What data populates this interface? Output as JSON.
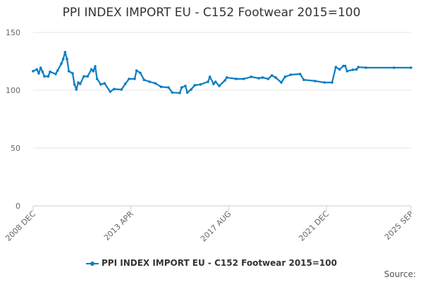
{
  "chart_data": {
    "type": "line",
    "title": "PPI INDEX IMPORT EU - C152 Footwear 2015=100",
    "xlabel": "",
    "ylabel": "",
    "x_unit": "months since 2008 DEC",
    "xlim": [
      0,
      201
    ],
    "ylim": [
      0,
      150
    ],
    "y_ticks": [
      0,
      50,
      100,
      150
    ],
    "x_ticks": [
      {
        "x": 0,
        "label": "2008 DEC"
      },
      {
        "x": 52,
        "label": "2013 APR"
      },
      {
        "x": 104,
        "label": "2017 AUG"
      },
      {
        "x": 156,
        "label": "2021 DEC"
      },
      {
        "x": 201,
        "label": "2025 SEP"
      }
    ],
    "grid": true,
    "legend_position": "bottom",
    "color": "#0a7dc2",
    "series": [
      {
        "name": "PPI INDEX IMPORT EU - C152 Footwear 2015=100",
        "x": [
          0,
          2,
          3,
          4,
          5,
          6,
          8,
          9,
          12,
          13,
          15,
          16,
          17,
          18,
          19,
          21,
          22,
          23,
          24,
          25,
          27,
          29,
          31,
          32,
          33,
          34,
          36,
          38,
          41,
          43,
          47,
          49,
          51,
          54,
          55,
          57,
          59,
          62,
          65,
          68,
          72,
          74,
          78,
          79,
          81,
          82,
          84,
          86,
          89,
          93,
          94,
          96,
          97,
          99,
          102,
          103,
          108,
          112,
          116,
          120,
          122,
          125,
          127,
          129,
          132,
          134,
          137,
          142,
          144,
          150,
          155,
          159,
          161,
          163,
          165,
          166,
          167,
          170,
          172,
          173,
          177,
          192,
          201
        ],
        "values": [
          116.5,
          118,
          114.6,
          119.5,
          116,
          112,
          112,
          116,
          114,
          117,
          123,
          127,
          133,
          127,
          116.5,
          114.6,
          105,
          100.6,
          106.7,
          105.5,
          112,
          112,
          118,
          116.5,
          120.7,
          109.8,
          105,
          106,
          98.8,
          101,
          100.6,
          105.5,
          109.8,
          109.8,
          117,
          115,
          109,
          107.3,
          106,
          103,
          102.4,
          98,
          97.6,
          102.4,
          103.7,
          98,
          100.6,
          104.3,
          105,
          107.3,
          111.6,
          105.5,
          107.3,
          103.7,
          108.5,
          111,
          109.8,
          109.8,
          111.6,
          110.4,
          111,
          109.8,
          112.8,
          111,
          106.7,
          111.6,
          113.4,
          114,
          109,
          108,
          106.7,
          106.7,
          120,
          118,
          121,
          121,
          116.5,
          117.7,
          118,
          120,
          119.5,
          119.5,
          119.5
        ]
      }
    ]
  },
  "source_label": "Source:"
}
